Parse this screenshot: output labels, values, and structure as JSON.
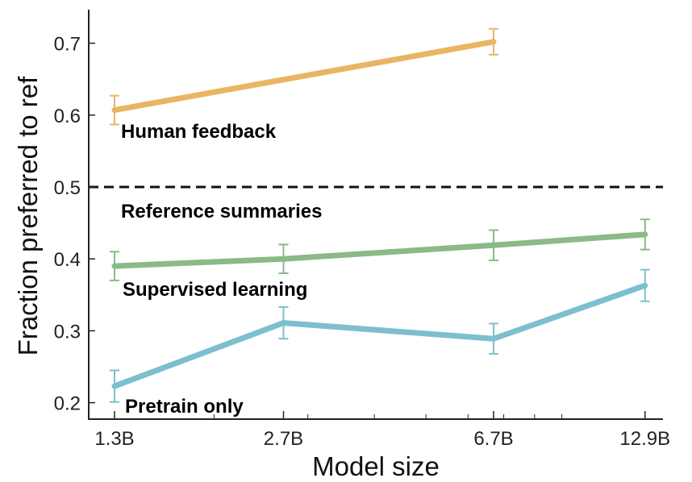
{
  "chart_data": {
    "type": "line",
    "title": "",
    "xlabel": "Model size",
    "ylabel": "Fraction preferred to ref",
    "x_scale": "log",
    "x": [
      1.3,
      2.7,
      6.7,
      12.9
    ],
    "x_tick_labels": [
      "1.3B",
      "2.7B",
      "6.7B",
      "12.9B"
    ],
    "y_ticks": [
      0.2,
      0.3,
      0.4,
      0.5,
      0.6,
      0.7
    ],
    "y_tick_labels": [
      "0.2",
      "0.3",
      "0.4",
      "0.5",
      "0.6",
      "0.7"
    ],
    "ylim": [
      0.18,
      0.73
    ],
    "grid": false,
    "reference": {
      "y": 0.5,
      "label": "Reference summaries",
      "color": "#111111",
      "style": "dashed"
    },
    "series": [
      {
        "name": "Human feedback",
        "color": "#E9B562",
        "x": [
          1.3,
          6.7
        ],
        "values": [
          0.607,
          0.702
        ],
        "errors": [
          0.02,
          0.018
        ]
      },
      {
        "name": "Supervised learning",
        "color": "#8BB987",
        "x": [
          1.3,
          2.7,
          6.7,
          12.9
        ],
        "values": [
          0.39,
          0.4,
          0.419,
          0.434
        ],
        "errors": [
          0.02,
          0.02,
          0.021,
          0.021
        ]
      },
      {
        "name": "Pretrain only",
        "color": "#7DBFCF",
        "x": [
          1.3,
          2.7,
          6.7,
          12.9
        ],
        "values": [
          0.223,
          0.311,
          0.289,
          0.363
        ],
        "errors": [
          0.022,
          0.022,
          0.021,
          0.022
        ]
      }
    ]
  }
}
